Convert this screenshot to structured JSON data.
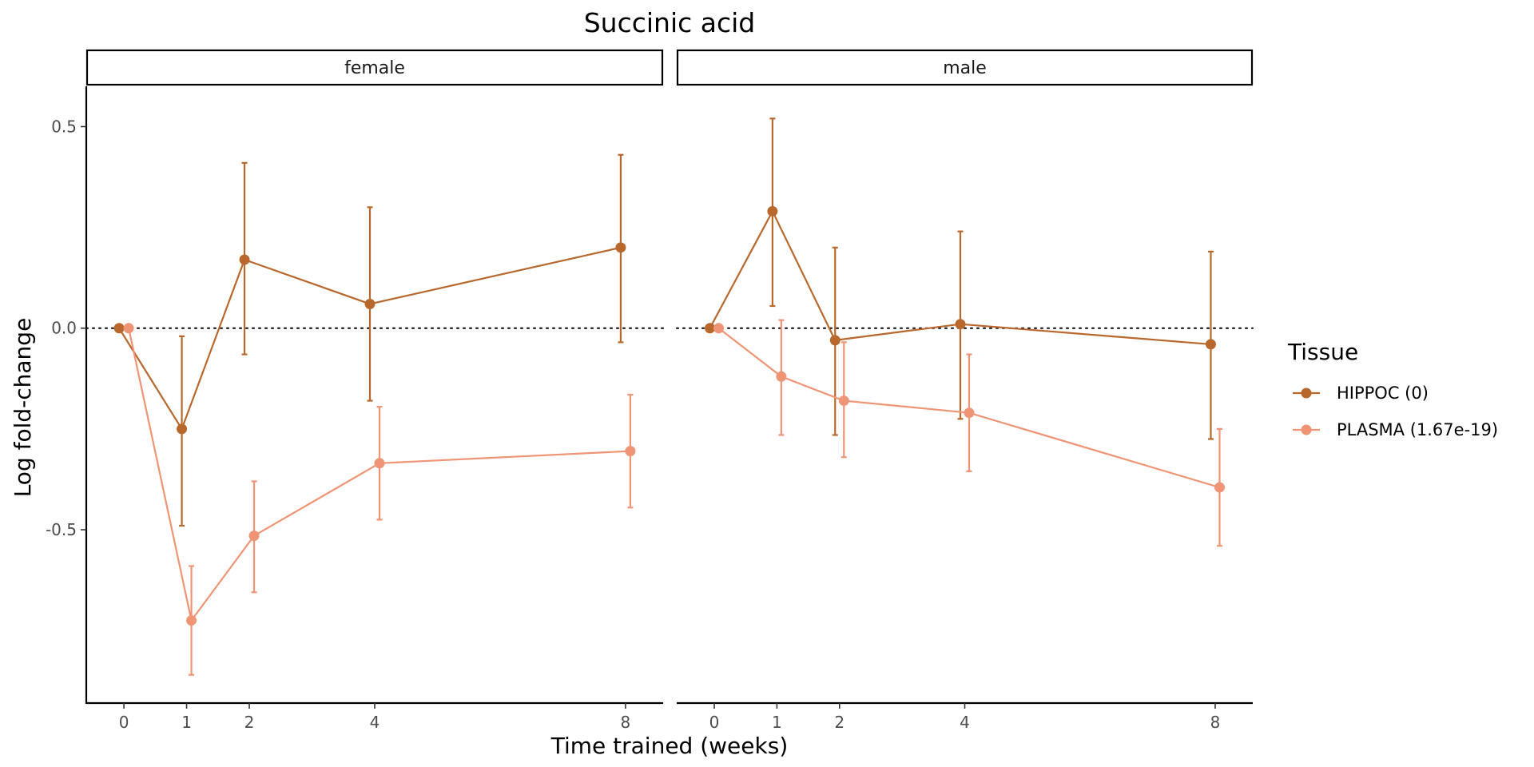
{
  "chart_data": {
    "type": "line",
    "title": "Succinic acid",
    "xlabel": "Time trained (weeks)",
    "ylabel": "Log fold-change",
    "x_ticks": [
      0,
      1,
      2,
      4,
      8
    ],
    "y_ticks": [
      0.5,
      0.0,
      -0.5
    ],
    "y_tick_labels": [
      "0.5",
      "0.0",
      "-0.5"
    ],
    "xlim": [
      -0.6,
      8.6
    ],
    "ylim": [
      -0.93,
      0.6
    ],
    "reference_line": {
      "y": 0,
      "style": "dotted"
    },
    "grid": false,
    "legend": {
      "title": "Tissue",
      "position": "right"
    },
    "colors": {
      "HIPPOC": "#b8682c",
      "PLASMA": "#ef9474"
    },
    "facets": [
      {
        "label": "female",
        "series": [
          {
            "name": "HIPPOC",
            "x": [
              0,
              1,
              2,
              4,
              8
            ],
            "y": [
              0.0,
              -0.25,
              0.17,
              0.06,
              0.2
            ],
            "ymin": [
              0.0,
              -0.49,
              -0.065,
              -0.18,
              -0.035
            ],
            "ymax": [
              0.0,
              -0.02,
              0.41,
              0.3,
              0.43
            ]
          },
          {
            "name": "PLASMA",
            "x": [
              0,
              1,
              2,
              4,
              8
            ],
            "y": [
              0.0,
              -0.725,
              -0.515,
              -0.335,
              -0.305
            ],
            "ymin": [
              0.0,
              -0.86,
              -0.655,
              -0.475,
              -0.445
            ],
            "ymax": [
              0.0,
              -0.59,
              -0.38,
              -0.195,
              -0.165
            ]
          }
        ]
      },
      {
        "label": "male",
        "series": [
          {
            "name": "HIPPOC",
            "x": [
              0,
              1,
              2,
              4,
              8
            ],
            "y": [
              0.0,
              0.29,
              -0.03,
              0.01,
              -0.04
            ],
            "ymin": [
              0.0,
              0.055,
              -0.265,
              -0.225,
              -0.275
            ],
            "ymax": [
              0.0,
              0.52,
              0.2,
              0.24,
              0.19
            ]
          },
          {
            "name": "PLASMA",
            "x": [
              0,
              1,
              2,
              4,
              8
            ],
            "y": [
              0.0,
              -0.12,
              -0.18,
              -0.21,
              -0.395
            ],
            "ymin": [
              0.0,
              -0.265,
              -0.32,
              -0.355,
              -0.54
            ],
            "ymax": [
              0.0,
              0.02,
              -0.035,
              -0.065,
              -0.25
            ]
          }
        ]
      }
    ],
    "legend_entries": [
      {
        "series": "HIPPOC",
        "label": "HIPPOC (0)"
      },
      {
        "series": "PLASMA",
        "label": "PLASMA (1.67e-19)"
      }
    ]
  }
}
